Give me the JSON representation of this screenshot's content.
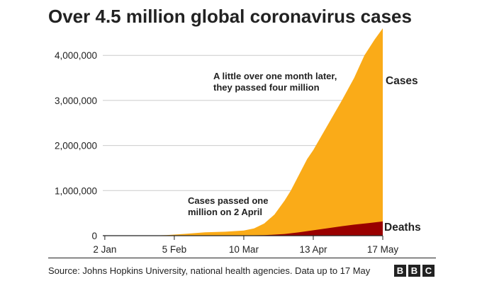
{
  "title": "Over 4.5 million global coronavirus cases",
  "source": "Source: Johns Hopkins University, national health agencies. Data up to 17 May",
  "logo": [
    "B",
    "B",
    "C"
  ],
  "colors": {
    "cases": "#FAAB18",
    "deaths": "#990000",
    "grid": "#cbcbcb",
    "text": "#222222"
  },
  "chart_data": {
    "type": "area",
    "title": "Over 4.5 million global coronavirus cases",
    "xlabel": "",
    "ylabel": "",
    "ylim": [
      0,
      4600000
    ],
    "yticks": [
      0,
      1000000,
      2000000,
      3000000,
      4000000
    ],
    "ytick_labels": [
      "0",
      "1,000,000",
      "2,000,000",
      "3,000,000",
      "4,000,000"
    ],
    "xlim": [
      "2020-01-01",
      "2020-05-17"
    ],
    "xticks": [
      "2020-01-02",
      "2020-02-05",
      "2020-03-10",
      "2020-04-13",
      "2020-05-17"
    ],
    "xtick_labels": [
      "2 Jan",
      "5 Feb",
      "10 Mar",
      "13 Apr",
      "17 May"
    ],
    "grid": true,
    "stacked": false,
    "series": [
      {
        "name": "Cases",
        "color": "#FAAB18",
        "points": [
          [
            "2020-01-01",
            0
          ],
          [
            "2020-01-22",
            555
          ],
          [
            "2020-02-01",
            12000
          ],
          [
            "2020-02-10",
            40000
          ],
          [
            "2020-02-20",
            76000
          ],
          [
            "2020-03-01",
            88000
          ],
          [
            "2020-03-10",
            115000
          ],
          [
            "2020-03-15",
            160000
          ],
          [
            "2020-03-20",
            270000
          ],
          [
            "2020-03-25",
            470000
          ],
          [
            "2020-03-30",
            780000
          ],
          [
            "2020-04-02",
            1000000
          ],
          [
            "2020-04-06",
            1350000
          ],
          [
            "2020-04-10",
            1700000
          ],
          [
            "2020-04-13",
            1900000
          ],
          [
            "2020-04-20",
            2450000
          ],
          [
            "2020-04-27",
            3000000
          ],
          [
            "2020-05-03",
            3500000
          ],
          [
            "2020-05-08",
            4000000
          ],
          [
            "2020-05-13",
            4350000
          ],
          [
            "2020-05-17",
            4600000
          ]
        ]
      },
      {
        "name": "Deaths",
        "color": "#990000",
        "points": [
          [
            "2020-01-01",
            0
          ],
          [
            "2020-02-20",
            2200
          ],
          [
            "2020-03-10",
            4300
          ],
          [
            "2020-03-20",
            11000
          ],
          [
            "2020-03-30",
            38000
          ],
          [
            "2020-04-06",
            75000
          ],
          [
            "2020-04-13",
            120000
          ],
          [
            "2020-04-20",
            165000
          ],
          [
            "2020-04-27",
            210000
          ],
          [
            "2020-05-03",
            245000
          ],
          [
            "2020-05-10",
            280000
          ],
          [
            "2020-05-17",
            315000
          ]
        ]
      }
    ],
    "series_labels": {
      "cases": "Cases",
      "deaths": "Deaths"
    },
    "annotations": [
      {
        "lines": [
          "A little over one month later,",
          "they passed four million"
        ]
      },
      {
        "lines": [
          "Cases passed one",
          "million on 2 April"
        ]
      }
    ]
  }
}
